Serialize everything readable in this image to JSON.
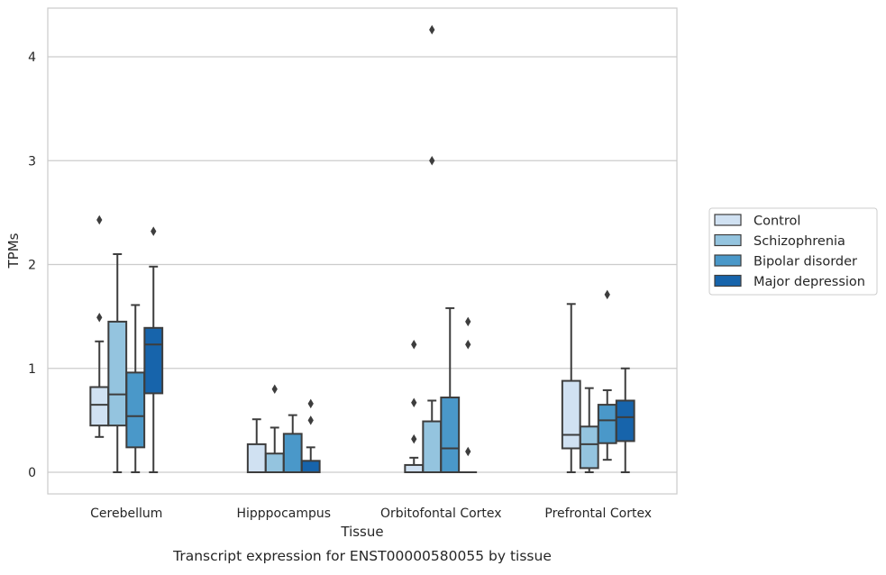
{
  "chart_data": {
    "type": "boxplot",
    "title": "Transcript expression for ENST00000580055 by tissue",
    "xlabel": "Tissue",
    "ylabel": "TPMs",
    "ylim": [
      -0.2,
      4.47
    ],
    "yticks": [
      0,
      1,
      2,
      3,
      4
    ],
    "grid": true,
    "legend_position": "right",
    "categories": [
      "Cerebellum",
      "Hipppocampus",
      "Orbitofontal Cortex",
      "Prefrontal Cortex"
    ],
    "series": [
      {
        "name": "Control",
        "color": "#d0e1f2",
        "boxes": [
          {
            "whislo": 0.34,
            "q1": 0.45,
            "med": 0.65,
            "q3": 0.82,
            "whishi": 1.26,
            "fliers": [
              1.49,
              2.43
            ]
          },
          {
            "whislo": 0.0,
            "q1": 0.0,
            "med": 0.0,
            "q3": 0.27,
            "whishi": 0.51,
            "fliers": []
          },
          {
            "whislo": 0.0,
            "q1": 0.0,
            "med": 0.0,
            "q3": 0.07,
            "whishi": 0.14,
            "fliers": [
              0.32,
              0.67,
              1.23
            ]
          },
          {
            "whislo": 0.0,
            "q1": 0.23,
            "med": 0.36,
            "q3": 0.88,
            "whishi": 1.62,
            "fliers": []
          }
        ]
      },
      {
        "name": "Schizophrenia",
        "color": "#94c4df",
        "boxes": [
          {
            "whislo": 0.0,
            "q1": 0.45,
            "med": 0.75,
            "q3": 1.45,
            "whishi": 2.1,
            "fliers": []
          },
          {
            "whislo": 0.0,
            "q1": 0.0,
            "med": 0.0,
            "q3": 0.18,
            "whishi": 0.43,
            "fliers": [
              0.8
            ]
          },
          {
            "whislo": 0.0,
            "q1": 0.0,
            "med": 0.0,
            "q3": 0.49,
            "whishi": 0.69,
            "fliers": [
              3.0,
              4.26
            ]
          },
          {
            "whislo": 0.0,
            "q1": 0.04,
            "med": 0.27,
            "q3": 0.44,
            "whishi": 0.81,
            "fliers": []
          }
        ]
      },
      {
        "name": "Bipolar disorder",
        "color": "#4a98c9",
        "boxes": [
          {
            "whislo": 0.0,
            "q1": 0.24,
            "med": 0.54,
            "q3": 0.96,
            "whishi": 1.61,
            "fliers": []
          },
          {
            "whislo": 0.0,
            "q1": 0.0,
            "med": 0.0,
            "q3": 0.37,
            "whishi": 0.55,
            "fliers": []
          },
          {
            "whislo": 0.0,
            "q1": 0.0,
            "med": 0.23,
            "q3": 0.72,
            "whishi": 1.58,
            "fliers": []
          },
          {
            "whislo": 0.12,
            "q1": 0.28,
            "med": 0.5,
            "q3": 0.65,
            "whishi": 0.79,
            "fliers": [
              1.71
            ]
          }
        ]
      },
      {
        "name": "Major depression",
        "color": "#1764ab",
        "boxes": [
          {
            "whislo": 0.0,
            "q1": 0.76,
            "med": 1.23,
            "q3": 1.39,
            "whishi": 1.98,
            "fliers": [
              2.32
            ]
          },
          {
            "whislo": 0.0,
            "q1": 0.0,
            "med": 0.0,
            "q3": 0.11,
            "whishi": 0.24,
            "fliers": [
              0.5,
              0.66
            ]
          },
          {
            "whislo": 0.0,
            "q1": 0.0,
            "med": 0.0,
            "q3": 0.0,
            "whishi": 0.0,
            "fliers": [
              0.2,
              1.23,
              1.45
            ]
          },
          {
            "whislo": 0.0,
            "q1": 0.3,
            "med": 0.53,
            "q3": 0.69,
            "whishi": 1.0,
            "fliers": []
          }
        ]
      }
    ]
  }
}
